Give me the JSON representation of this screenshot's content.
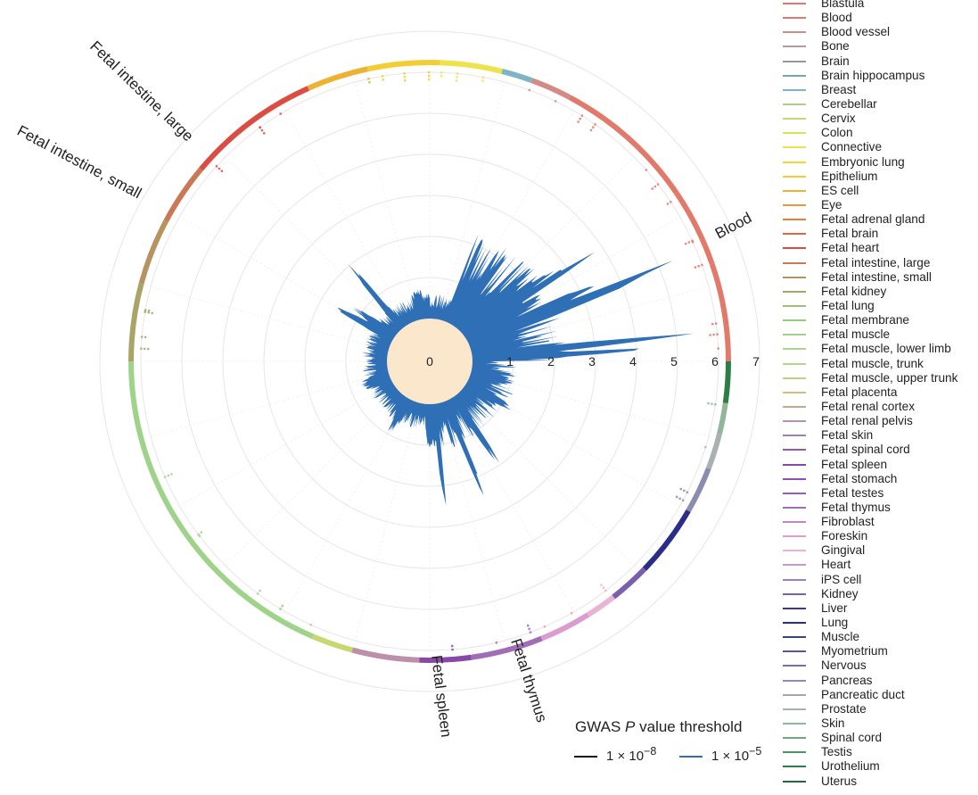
{
  "chart_data": {
    "type": "radial-area",
    "radial_axis": {
      "ticks": [
        "0",
        "1",
        "2",
        "3",
        "4",
        "5",
        "6",
        "7"
      ],
      "range": [
        0,
        7
      ]
    },
    "grid": true,
    "segment_labels": [
      "Blood",
      "Fetal intestine, large",
      "Fetal intestine, small",
      "Fetal spleen",
      "Fetal thymus"
    ],
    "series": [
      {
        "name": "1 × 10",
        "exponent": "−8",
        "color": "#111111"
      },
      {
        "name": "1 × 10",
        "exponent": "−5",
        "color": "#2f6fb6"
      }
    ],
    "legend_title_parts": [
      "GWAS ",
      "P",
      " value threshold"
    ],
    "tissues": [
      {
        "name": "Blastula",
        "color": "#e8736a"
      },
      {
        "name": "Blood",
        "color": "#e27a6b"
      },
      {
        "name": "Blood vessel",
        "color": "#d48b86"
      },
      {
        "name": "Bone",
        "color": "#b59aa2"
      },
      {
        "name": "Brain",
        "color": "#9597a2"
      },
      {
        "name": "Brain hippocampus",
        "color": "#7aa3b5"
      },
      {
        "name": "Breast",
        "color": "#7fb3c6"
      },
      {
        "name": "Cerebellar",
        "color": "#b3cd8a"
      },
      {
        "name": "Cervix",
        "color": "#c8d770"
      },
      {
        "name": "Colon",
        "color": "#dfe05a"
      },
      {
        "name": "Connective",
        "color": "#ece34d"
      },
      {
        "name": "Embryonic lung",
        "color": "#f0d63a"
      },
      {
        "name": "Epithelium",
        "color": "#f2cd33"
      },
      {
        "name": "ES cell",
        "color": "#edb232"
      },
      {
        "name": "Eye",
        "color": "#e8983a"
      },
      {
        "name": "Fetal adrenal gland",
        "color": "#e4803e"
      },
      {
        "name": "Fetal brain",
        "color": "#e0663f"
      },
      {
        "name": "Fetal heart",
        "color": "#db4d42"
      },
      {
        "name": "Fetal intestine, large",
        "color": "#c97a55"
      },
      {
        "name": "Fetal intestine, small",
        "color": "#b79360"
      },
      {
        "name": "Fetal kidney",
        "color": "#a9a468"
      },
      {
        "name": "Fetal lung",
        "color": "#9fc07a"
      },
      {
        "name": "Fetal membrane",
        "color": "#94cc7e"
      },
      {
        "name": "Fetal muscle",
        "color": "#9fd38a"
      },
      {
        "name": "Fetal muscle, lower limb",
        "color": "#a8d58f"
      },
      {
        "name": "Fetal muscle, trunk",
        "color": "#b0d890"
      },
      {
        "name": "Fetal muscle, upper trunk",
        "color": "#bcd386"
      },
      {
        "name": "Fetal placenta",
        "color": "#c7c47e"
      },
      {
        "name": "Fetal renal cortex",
        "color": "#c3a98e"
      },
      {
        "name": "Fetal renal pelvis",
        "color": "#bd8fa8"
      },
      {
        "name": "Fetal skin",
        "color": "#a87cb8"
      },
      {
        "name": "Fetal spinal cord",
        "color": "#9458ad"
      },
      {
        "name": "Fetal spleen",
        "color": "#8947a6"
      },
      {
        "name": "Fetal stomach",
        "color": "#8e52a9"
      },
      {
        "name": "Fetal testes",
        "color": "#955eae"
      },
      {
        "name": "Fetal thymus",
        "color": "#a06db6"
      },
      {
        "name": "Fibroblast",
        "color": "#c585c4"
      },
      {
        "name": "Foreskin",
        "color": "#dc9cd0"
      },
      {
        "name": "Gingival",
        "color": "#e8b3d5"
      },
      {
        "name": "Heart",
        "color": "#c69ac4"
      },
      {
        "name": "iPS cell",
        "color": "#9b7fc0"
      },
      {
        "name": "Kidney",
        "color": "#7a5fb0"
      },
      {
        "name": "Liver",
        "color": "#3e3596"
      },
      {
        "name": "Lung",
        "color": "#2b2d8a"
      },
      {
        "name": "Muscle",
        "color": "#3a3f8e"
      },
      {
        "name": "Myometrium",
        "color": "#55579a"
      },
      {
        "name": "Nervous",
        "color": "#6f73a6"
      },
      {
        "name": "Pancreas",
        "color": "#8a8daf"
      },
      {
        "name": "Pancreatic duct",
        "color": "#a3a5b7"
      },
      {
        "name": "Prostate",
        "color": "#aab1b2"
      },
      {
        "name": "Skin",
        "color": "#93b599"
      },
      {
        "name": "Spinal cord",
        "color": "#72a77b"
      },
      {
        "name": "Testis",
        "color": "#4f935e"
      },
      {
        "name": "Urothelium",
        "color": "#2f7d46"
      },
      {
        "name": "Uterus",
        "color": "#1e6a38"
      }
    ]
  }
}
